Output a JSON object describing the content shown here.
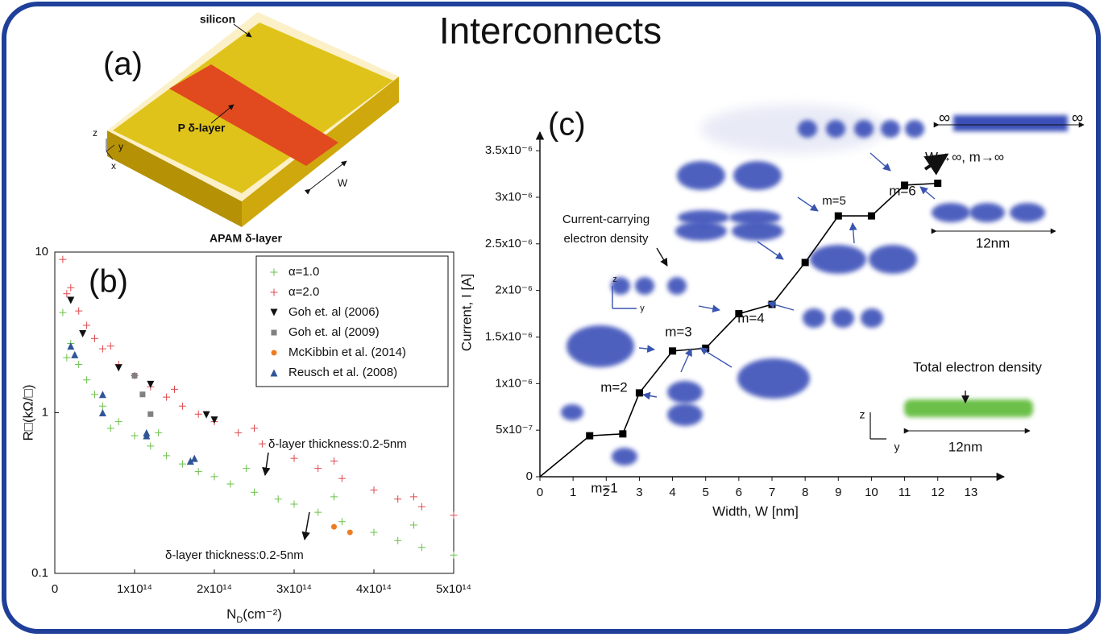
{
  "title": "Interconnects",
  "panel_a": {
    "label": "(a)",
    "texts": [
      "silicon",
      "P δ-layer",
      "APAM δ-layer",
      "W",
      "z",
      "y",
      "x"
    ]
  },
  "chart_data": [
    {
      "type": "scatter",
      "panel_label": "(b)",
      "xlabel": [
        "N",
        "D",
        "(cm⁻²)"
      ],
      "ylabel": "R□(kΩ/□)",
      "xlim": [
        0,
        500000000000000.0
      ],
      "ylim": [
        0.1,
        10
      ],
      "ylog": true,
      "xticks": [
        0,
        {
          "value": 100000000000000.0,
          "label": "1x10¹⁴"
        },
        {
          "value": 200000000000000.0,
          "label": "2x10¹⁴"
        },
        {
          "value": 300000000000000.0,
          "label": "3x10¹⁴"
        },
        {
          "value": 400000000000000.0,
          "label": "4x10¹⁴"
        },
        {
          "value": 500000000000000.0,
          "label": "5x10¹⁴"
        }
      ],
      "yticks": [
        0.1,
        1,
        10
      ],
      "legend": "upper right",
      "annotations": [
        "δ-layer thickness:0.2-5nm",
        "δ-layer thickness:0.2-5nm"
      ],
      "series": [
        {
          "name": "α=1.0",
          "color": "#6cc04a",
          "marker": "plus",
          "x": [
            10000000000000.0,
            15000000000000.0,
            20000000000000.0,
            30000000000000.0,
            40000000000000.0,
            50000000000000.0,
            60000000000000.0,
            70000000000000.0,
            80000000000000.0,
            100000000000000.0,
            120000000000000.0,
            130000000000000.0,
            140000000000000.0,
            160000000000000.0,
            180000000000000.0,
            200000000000000.0,
            220000000000000.0,
            240000000000000.0,
            250000000000000.0,
            280000000000000.0,
            300000000000000.0,
            330000000000000.0,
            350000000000000.0,
            360000000000000.0,
            400000000000000.0,
            430000000000000.0,
            450000000000000.0,
            460000000000000.0,
            500000000000000.0
          ],
          "values": [
            4.2,
            2.2,
            2.7,
            2.0,
            1.6,
            1.3,
            1.1,
            0.8,
            0.88,
            0.72,
            0.62,
            0.75,
            0.54,
            0.48,
            0.43,
            0.4,
            0.36,
            0.45,
            0.32,
            0.29,
            0.27,
            0.24,
            0.3,
            0.21,
            0.18,
            0.16,
            0.2,
            0.145,
            0.13
          ]
        },
        {
          "name": "α=2.0",
          "color": "#e0474c",
          "marker": "plus",
          "x": [
            10000000000000.0,
            15000000000000.0,
            20000000000000.0,
            30000000000000.0,
            40000000000000.0,
            50000000000000.0,
            60000000000000.0,
            70000000000000.0,
            80000000000000.0,
            100000000000000.0,
            120000000000000.0,
            140000000000000.0,
            150000000000000.0,
            160000000000000.0,
            180000000000000.0,
            200000000000000.0,
            230000000000000.0,
            250000000000000.0,
            260000000000000.0,
            300000000000000.0,
            330000000000000.0,
            350000000000000.0,
            360000000000000.0,
            400000000000000.0,
            430000000000000.0,
            450000000000000.0,
            460000000000000.0,
            500000000000000.0
          ],
          "values": [
            9,
            5.5,
            6,
            4.3,
            3.5,
            2.9,
            2.5,
            2.6,
            2.0,
            1.7,
            1.45,
            1.25,
            1.4,
            1.1,
            0.98,
            0.88,
            0.75,
            0.8,
            0.64,
            0.52,
            0.45,
            0.5,
            0.39,
            0.33,
            0.29,
            0.3,
            0.26,
            0.23
          ]
        },
        {
          "name": "Goh et. al (2006)",
          "color": "#111111",
          "marker": "triangle-down",
          "x": [
            20000000000000.0,
            35000000000000.0,
            80000000000000.0,
            120000000000000.0,
            190000000000000.0,
            200000000000000.0
          ],
          "values": [
            5,
            3.1,
            1.9,
            1.5,
            0.97,
            0.9
          ]
        },
        {
          "name": "Goh et. al (2009)",
          "color": "#808080",
          "marker": "square",
          "x": [
            100000000000000.0,
            110000000000000.0,
            120000000000000.0
          ],
          "values": [
            1.7,
            1.3,
            0.98
          ]
        },
        {
          "name": "McKibbin et al. (2014)",
          "color": "#ee7d22",
          "marker": "circle",
          "x": [
            350000000000000.0,
            370000000000000.0
          ],
          "values": [
            0.195,
            0.18
          ]
        },
        {
          "name": "Reusch et al. (2008)",
          "color": "#2f5597",
          "marker": "triangle-up",
          "x": [
            20000000000000.0,
            25000000000000.0,
            60000000000000.0,
            60000000000000.0,
            115000000000000.0,
            115000000000000.0,
            170000000000000.0,
            175000000000000.0
          ],
          "values": [
            2.6,
            2.3,
            1.3,
            1.0,
            0.75,
            0.72,
            0.5,
            0.52
          ]
        }
      ]
    },
    {
      "type": "line",
      "panel_label": "(c)",
      "xlabel": "Width, W [nm]",
      "ylabel": "Current, I [A]",
      "xlim": [
        0,
        14
      ],
      "ylim": [
        0,
        3.7e-06
      ],
      "xticks": [
        0,
        1,
        2,
        3,
        4,
        5,
        6,
        7,
        8,
        9,
        10,
        11,
        12,
        13
      ],
      "yticks": [
        0,
        {
          "value": 5e-07,
          "label": "5x10⁻⁷"
        },
        {
          "value": 1e-06,
          "label": "1x10⁻⁶"
        },
        {
          "value": 1.5e-06,
          "label": "1.5x10⁻⁶"
        },
        {
          "value": 2e-06,
          "label": "2x10⁻⁶"
        },
        {
          "value": 2.5e-06,
          "label": "2.5x10⁻⁶"
        },
        {
          "value": 3e-06,
          "label": "3x10⁻⁶"
        },
        {
          "value": 3.5e-06,
          "label": "3.5x10⁻⁶"
        }
      ],
      "color": "#000000",
      "x": [
        0,
        1.5,
        2.5,
        3,
        4,
        5,
        6,
        7,
        8,
        9,
        10,
        11,
        12
      ],
      "values": [
        0,
        4.4e-07,
        4.6e-07,
        9e-07,
        1.35e-06,
        1.38e-06,
        1.75e-06,
        1.85e-06,
        2.3e-06,
        2.8e-06,
        2.8e-06,
        3.13e-06,
        3.15e-06
      ],
      "annotations": [
        "Current-carrying",
        "electron density",
        "m=1",
        "m=2",
        "m=3",
        "m=4",
        "m=5",
        "m=6",
        "W→∞, m→∞",
        "∞",
        "∞",
        "12nm",
        "12nm",
        "Total electron density",
        "z",
        "y",
        "z",
        "y"
      ]
    }
  ]
}
